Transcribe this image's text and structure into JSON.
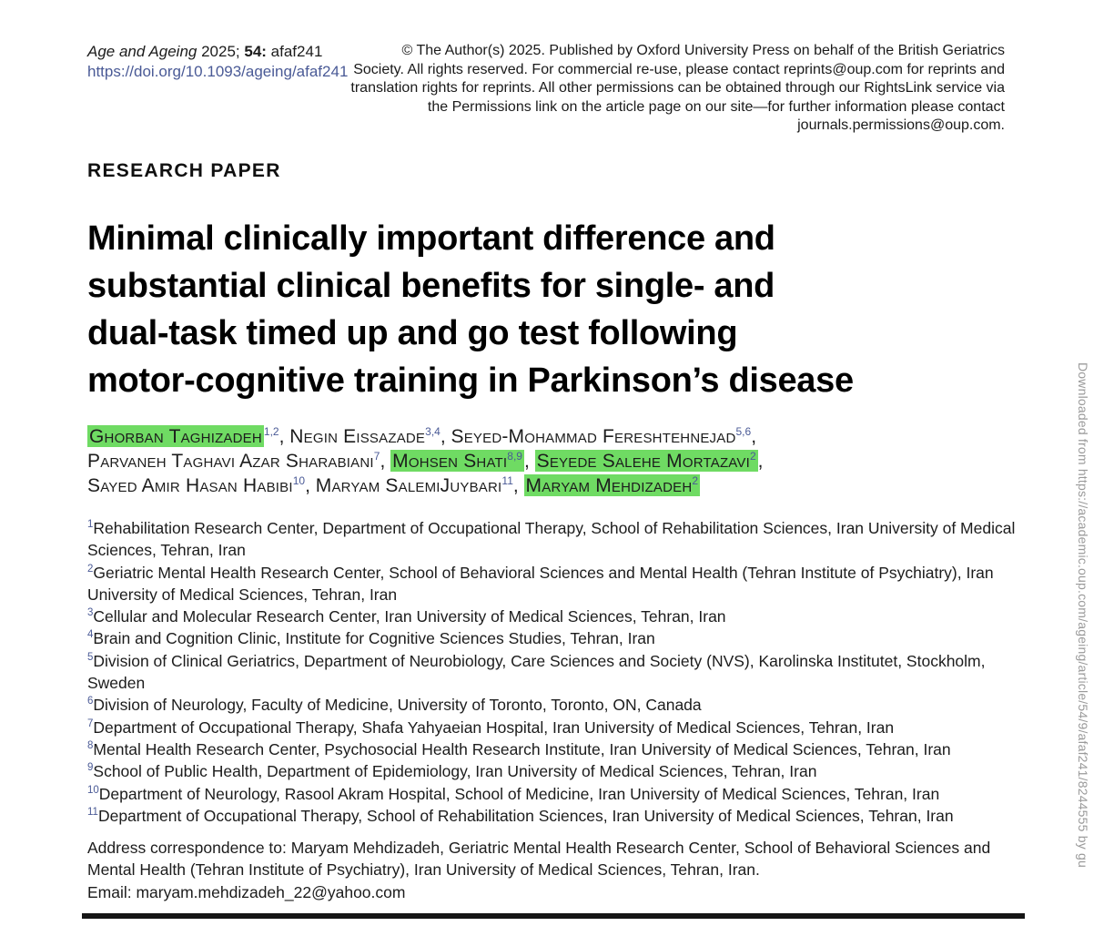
{
  "journal": {
    "name": "Age and Ageing",
    "citation_middle": " 2025; ",
    "volume": "54:",
    "article_id": " afaf241",
    "doi": "https://doi.org/10.1093/ageing/afaf241"
  },
  "copyright_notice": "© The Author(s) 2025. Published by Oxford University Press on behalf of the British Geriatrics\nSociety. All rights reserved. For commercial re-use, please contact reprints@oup.com for reprints and\ntranslation rights for reprints. All other permissions can be obtained through our RightsLink service via\nthe Permissions link on the article page on our site—for further information please contact\njournals.permissions@oup.com.",
  "section_label": "RESEARCH PAPER",
  "title": "Minimal clinically important difference and\nsubstantial clinical benefits for single- and\ndual-task timed up and go test following\nmotor-cognitive training in Parkinson’s disease",
  "author_lines": [
    [
      {
        "name": "Ghorban Taghizadeh",
        "sup": "1,2",
        "highlight": true,
        "sup_in_highlight": false
      },
      {
        "name": "Negin Eissazade",
        "sup": "3,4",
        "highlight": false,
        "sup_in_highlight": false
      },
      {
        "name": "Seyed-Mohammad Fereshtehnejad",
        "sup": "5,6",
        "highlight": false,
        "sup_in_highlight": false
      }
    ],
    [
      {
        "name": "Parvaneh Taghavi Azar Sharabiani",
        "sup": "7",
        "highlight": false,
        "sup_in_highlight": false
      },
      {
        "name": "Mohsen Shati",
        "sup": "8,9",
        "highlight": true,
        "sup_in_highlight": true
      },
      {
        "name": "Seyede Salehe Mortazavi",
        "sup": "2",
        "highlight": true,
        "sup_in_highlight": true
      }
    ],
    [
      {
        "name": "Sayed Amir Hasan Habibi",
        "sup": "10",
        "highlight": false,
        "sup_in_highlight": false
      },
      {
        "name": "Maryam SalemiJuybari",
        "sup": "11",
        "highlight": false,
        "sup_in_highlight": false
      },
      {
        "name": "Maryam Mehdizadeh",
        "sup": "2",
        "highlight": true,
        "sup_in_highlight": true
      }
    ]
  ],
  "affiliations": [
    {
      "num": "1",
      "text": "Rehabilitation Research Center, Department of Occupational Therapy, School of Rehabilitation Sciences, Iran University of Medical Sciences, Tehran, Iran"
    },
    {
      "num": "2",
      "text": "Geriatric Mental Health Research Center, School of Behavioral Sciences and Mental Health (Tehran Institute of Psychiatry), Iran University of Medical Sciences, Tehran, Iran"
    },
    {
      "num": "3",
      "text": "Cellular and Molecular Research Center, Iran University of Medical Sciences, Tehran, Iran"
    },
    {
      "num": "4",
      "text": "Brain and Cognition Clinic, Institute for Cognitive Sciences Studies, Tehran, Iran"
    },
    {
      "num": "5",
      "text": "Division of Clinical Geriatrics, Department of Neurobiology, Care Sciences and Society (NVS), Karolinska Institutet, Stockholm, Sweden"
    },
    {
      "num": "6",
      "text": "Division of Neurology, Faculty of Medicine, University of Toronto, Toronto, ON, Canada"
    },
    {
      "num": "7",
      "text": "Department of Occupational Therapy, Shafa Yahyaeian Hospital, Iran University of Medical Sciences, Tehran, Iran"
    },
    {
      "num": "8",
      "text": "Mental Health Research Center, Psychosocial Health Research Institute, Iran University of Medical Sciences, Tehran, Iran"
    },
    {
      "num": "9",
      "text": "School of Public Health, Department of Epidemiology, Iran University of Medical Sciences, Tehran, Iran"
    },
    {
      "num": "10",
      "text": "Department of Neurology, Rasool Akram Hospital, School of Medicine, Iran University of Medical Sciences, Tehran, Iran"
    },
    {
      "num": "11",
      "text": "Department of Occupational Therapy, School of Rehabilitation Sciences, Iran University of Medical Sciences, Tehran, Iran"
    }
  ],
  "correspondence": {
    "address": "Address correspondence to: Maryam Mehdizadeh, Geriatric Mental Health Research Center, School of Behavioral Sciences and\nMental Health (Tehran Institute of Psychiatry), Iran University of Medical Sciences, Tehran, Iran.",
    "email_label": "Email: ",
    "email": "maryam.mehdizadeh_22@yahoo.com"
  },
  "sidebar_note": "Downloaded from https://academic.oup.com/ageing/article/54/9/afaf241/8244555 by gu",
  "colors": {
    "highlight_green": "#6FDB63",
    "link_blue": "#4A5A96",
    "rule_black": "#151515",
    "watermark_grey": "#9A9A9A"
  }
}
